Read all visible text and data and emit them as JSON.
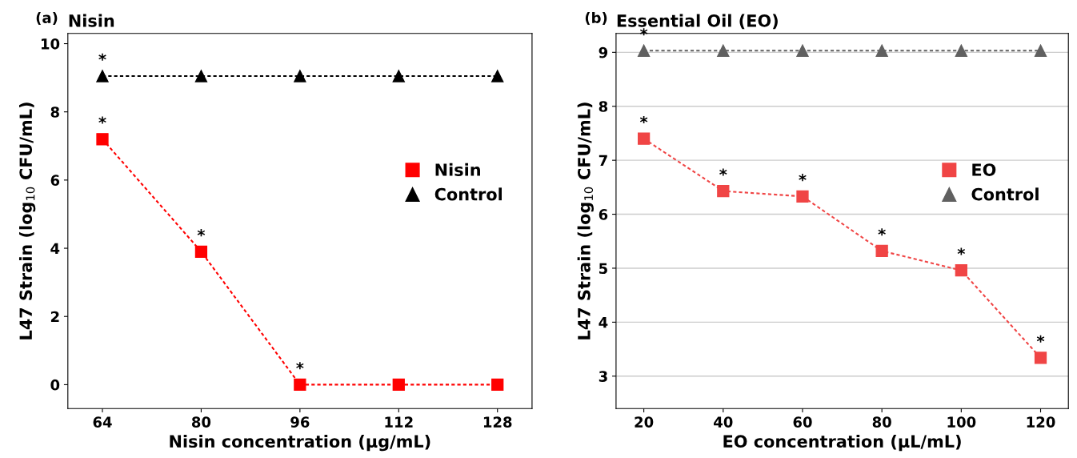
{
  "chart_data": [
    {
      "type": "line",
      "title": "Nisin",
      "xlabel": "Nisin concentration (µg/mL)",
      "ylabel": "L47 Strain (log$_{10}$ CFU/mL)",
      "categories": [
        "64",
        "80",
        "96",
        "112",
        "128"
      ],
      "series": [
        {
          "name": "Nisin",
          "color": "#ff0000",
          "values": [
            7.2,
            3.9,
            0,
            0,
            0
          ],
          "marker": "square",
          "line_style": "dotted"
        },
        {
          "name": "Control",
          "color": "#000000",
          "values": [
            9.05,
            9.05,
            9.05,
            9.05,
            9.05
          ],
          "marker": "triangle",
          "line_style": "dotted"
        }
      ],
      "ylim": [
        -0.7,
        10.3
      ],
      "yticks": [
        0,
        2,
        4,
        6,
        8,
        10
      ],
      "grid": false,
      "legend": "right",
      "annotations": [
        "(a)",
        {
          "text": "*",
          "x": "64",
          "y": 9.05
        },
        {
          "text": "*",
          "x": "64",
          "y": 7.2
        },
        {
          "text": "*",
          "x": "80",
          "y": 3.9
        },
        {
          "text": "*",
          "x": "96",
          "y": 0
        }
      ]
    },
    {
      "type": "line",
      "title": "Essential Oil (EO)",
      "xlabel": "EO concentration (µL/mL)",
      "ylabel": "L47 Strain (log$_{10}$ CFU/mL)",
      "categories": [
        "20",
        "40",
        "60",
        "80",
        "100",
        "120"
      ],
      "series": [
        {
          "name": "EO",
          "color": "#f04545",
          "values": [
            7.4,
            6.43,
            6.33,
            5.32,
            4.96,
            3.34
          ],
          "marker": "square",
          "line_style": "dotted"
        },
        {
          "name": "Control",
          "color": "#606060",
          "values": [
            9.03,
            9.03,
            9.03,
            9.03,
            9.03,
            9.03
          ],
          "marker": "triangle",
          "line_style": "dotted"
        }
      ],
      "ylim": [
        2.4,
        9.35
      ],
      "yticks": [
        3,
        4,
        5,
        6,
        7,
        8,
        9
      ],
      "grid": "y",
      "legend": "right",
      "annotations": [
        "(b)",
        {
          "text": "*",
          "x": "20",
          "y": 9.03
        },
        {
          "text": "*",
          "x": "20",
          "y": 7.4
        },
        {
          "text": "*",
          "x": "40",
          "y": 6.43
        },
        {
          "text": "*",
          "x": "60",
          "y": 6.33
        },
        {
          "text": "*",
          "x": "80",
          "y": 5.32
        },
        {
          "text": "*",
          "x": "100",
          "y": 4.96
        },
        {
          "text": "*",
          "x": "120",
          "y": 3.34
        }
      ]
    }
  ]
}
